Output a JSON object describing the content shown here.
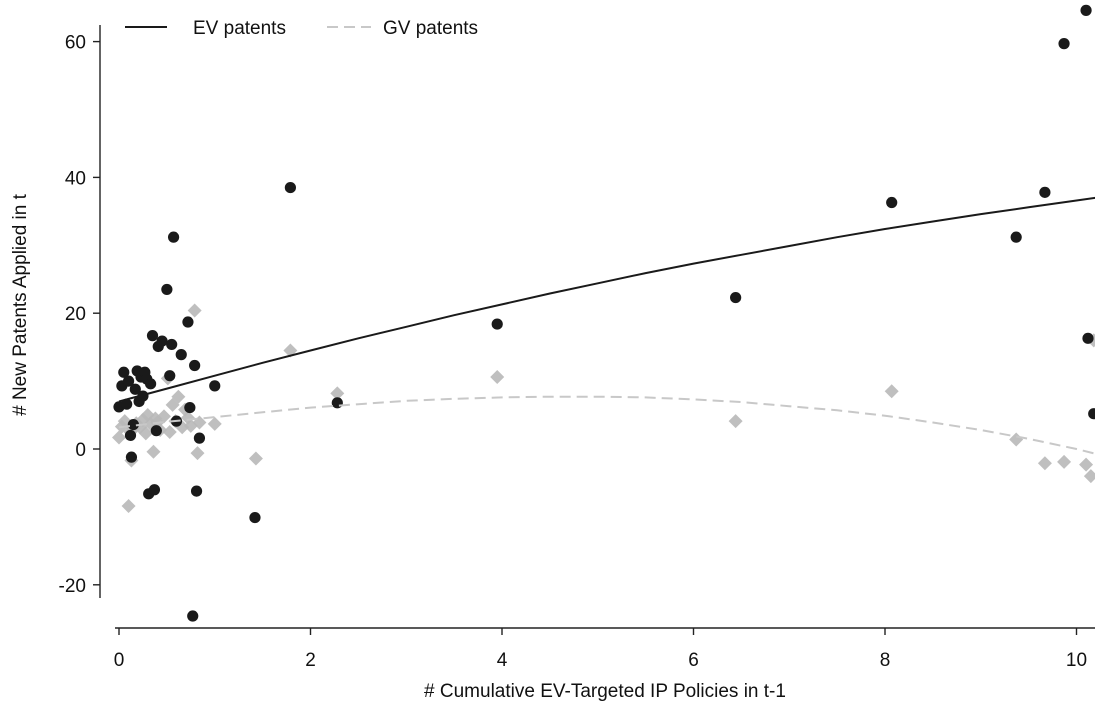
{
  "chart_data": {
    "type": "scatter",
    "title": "",
    "xlabel": "# Cumulative EV-Targeted IP Policies in t-1",
    "ylabel": "# New Patents Applied in t",
    "xlim": [
      0,
      10.2
    ],
    "ylim": [
      -26,
      67
    ],
    "x_ticks": [
      0,
      2,
      4,
      6,
      8,
      10
    ],
    "y_ticks": [
      -20,
      0,
      20,
      40,
      60
    ],
    "grid": false,
    "legend_position": "top-left",
    "series": [
      {
        "name": "EV patents",
        "marker": "circle",
        "color": "#1a1a1a",
        "points": [
          [
            0.0,
            6.2
          ],
          [
            0.03,
            9.3
          ],
          [
            0.05,
            11.3
          ],
          [
            0.08,
            6.6
          ],
          [
            0.1,
            10.0
          ],
          [
            0.12,
            2.0
          ],
          [
            0.13,
            -1.2
          ],
          [
            0.15,
            3.6
          ],
          [
            0.17,
            8.8
          ],
          [
            0.19,
            11.5
          ],
          [
            0.21,
            7.0
          ],
          [
            0.23,
            10.6
          ],
          [
            0.25,
            7.8
          ],
          [
            0.27,
            11.3
          ],
          [
            0.29,
            10.3
          ],
          [
            0.31,
            -6.6
          ],
          [
            0.33,
            9.6
          ],
          [
            0.35,
            16.7
          ],
          [
            0.37,
            -6.0
          ],
          [
            0.39,
            2.7
          ],
          [
            0.41,
            15.1
          ],
          [
            0.45,
            15.9
          ],
          [
            0.5,
            23.5
          ],
          [
            0.53,
            10.8
          ],
          [
            0.55,
            15.4
          ],
          [
            0.57,
            31.2
          ],
          [
            0.6,
            4.1
          ],
          [
            0.65,
            13.9
          ],
          [
            0.72,
            18.7
          ],
          [
            0.74,
            6.1
          ],
          [
            0.77,
            -24.6
          ],
          [
            0.79,
            12.3
          ],
          [
            0.81,
            -6.2
          ],
          [
            0.84,
            1.6
          ],
          [
            1.0,
            9.3
          ],
          [
            1.42,
            -10.1
          ],
          [
            1.79,
            38.5
          ],
          [
            2.28,
            6.8
          ],
          [
            3.95,
            18.4
          ],
          [
            6.44,
            22.3
          ],
          [
            8.07,
            36.3
          ],
          [
            9.37,
            31.2
          ],
          [
            9.67,
            37.8
          ],
          [
            9.87,
            59.7
          ],
          [
            10.1,
            64.6
          ],
          [
            10.12,
            16.3
          ],
          [
            10.18,
            5.2
          ]
        ]
      },
      {
        "name": "GV patents",
        "marker": "diamond",
        "color": "#b8b8b8",
        "points": [
          [
            0.0,
            1.7
          ],
          [
            0.03,
            3.3
          ],
          [
            0.06,
            4.1
          ],
          [
            0.1,
            -8.4
          ],
          [
            0.12,
            2.5
          ],
          [
            0.13,
            -1.7
          ],
          [
            0.15,
            3.0
          ],
          [
            0.18,
            3.8
          ],
          [
            0.22,
            3.2
          ],
          [
            0.25,
            4.3
          ],
          [
            0.28,
            2.3
          ],
          [
            0.3,
            5.0
          ],
          [
            0.33,
            3.7
          ],
          [
            0.36,
            -0.4
          ],
          [
            0.38,
            4.5
          ],
          [
            0.4,
            3.9
          ],
          [
            0.43,
            2.8
          ],
          [
            0.47,
            4.8
          ],
          [
            0.51,
            10.4
          ],
          [
            0.53,
            2.5
          ],
          [
            0.56,
            6.5
          ],
          [
            0.59,
            4.1
          ],
          [
            0.62,
            7.7
          ],
          [
            0.66,
            3.2
          ],
          [
            0.69,
            5.8
          ],
          [
            0.72,
            4.6
          ],
          [
            0.75,
            3.4
          ],
          [
            0.79,
            20.4
          ],
          [
            0.82,
            -0.6
          ],
          [
            0.84,
            3.9
          ],
          [
            1.0,
            3.7
          ],
          [
            1.43,
            -1.4
          ],
          [
            1.79,
            14.5
          ],
          [
            2.28,
            8.2
          ],
          [
            3.95,
            10.6
          ],
          [
            6.44,
            4.1
          ],
          [
            8.07,
            8.5
          ],
          [
            9.37,
            1.4
          ],
          [
            9.67,
            -2.1
          ],
          [
            9.87,
            -1.9
          ],
          [
            10.1,
            -2.3
          ],
          [
            10.15,
            -4.0
          ],
          [
            10.18,
            16.0
          ]
        ]
      }
    ],
    "fit_lines": [
      {
        "name": "EV patents",
        "style": "solid",
        "color": "#1a1a1a",
        "x": [
          0.0,
          0.5,
          1.0,
          1.5,
          2.0,
          2.5,
          3.0,
          3.5,
          4.0,
          4.5,
          5.0,
          5.5,
          6.0,
          6.5,
          7.0,
          7.5,
          8.0,
          8.5,
          9.0,
          9.5,
          10.0,
          10.2
        ],
        "y": [
          7.0,
          8.9,
          10.8,
          12.7,
          14.5,
          16.3,
          18.0,
          19.7,
          21.3,
          22.9,
          24.4,
          25.9,
          27.3,
          28.6,
          29.9,
          31.2,
          32.4,
          33.5,
          34.6,
          35.6,
          36.6,
          37.0
        ]
      },
      {
        "name": "GV patents",
        "style": "dashed",
        "color": "#c8c8c8",
        "x": [
          0.0,
          0.5,
          1.0,
          1.5,
          2.0,
          2.5,
          3.0,
          3.5,
          4.0,
          4.5,
          5.0,
          5.5,
          6.0,
          6.5,
          7.0,
          7.5,
          8.0,
          8.5,
          9.0,
          9.5,
          10.0,
          10.2
        ],
        "y": [
          3.2,
          4.0,
          4.7,
          5.4,
          6.1,
          6.6,
          7.1,
          7.4,
          7.6,
          7.7,
          7.7,
          7.6,
          7.3,
          6.9,
          6.3,
          5.7,
          4.9,
          3.9,
          2.8,
          1.5,
          0.0,
          -0.7
        ]
      }
    ]
  }
}
